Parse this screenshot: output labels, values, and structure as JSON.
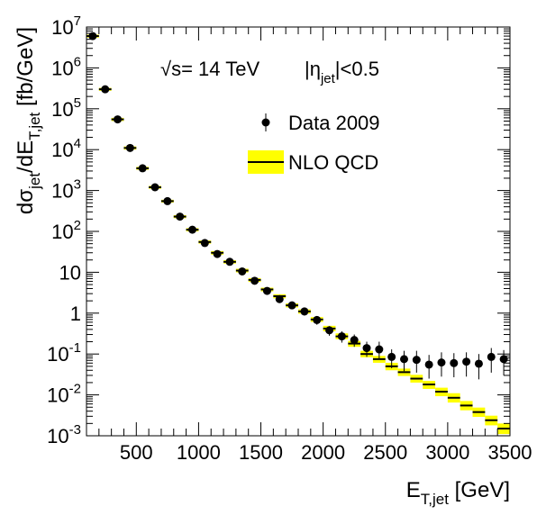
{
  "chart_data": {
    "type": "scatter",
    "title": "",
    "xlabel": "E_{T,jet}  [GeV]",
    "ylabel": "dσ_{jet}/dE_{T,jet} [fb/GeV]",
    "x_scale": "linear",
    "y_scale": "log",
    "xlim": [
      100,
      3500
    ],
    "ylim": [
      0.001,
      10000000
    ],
    "x_ticks": [
      500,
      1000,
      1500,
      2000,
      2500,
      3000,
      3500
    ],
    "x_tick_labels": [
      "500",
      "1000",
      "1500",
      "2000",
      "2500",
      "3000",
      "3500"
    ],
    "y_ticks": [
      0.001,
      0.01,
      0.1,
      1,
      10,
      100,
      1000,
      10000,
      100000,
      1000000,
      10000000
    ],
    "y_tick_labels": [
      "10^{-3}",
      "10^{-2}",
      "10^{-1}",
      "1",
      "10",
      "10^{2}",
      "10^{3}",
      "10^{4}",
      "10^{5}",
      "10^{6}",
      "10^{7}"
    ],
    "grid": false,
    "legend_position": "top-right",
    "annotations": {
      "energy": "√s= 14 TeV",
      "eta_cut": "|η_{jet}|<0.5"
    },
    "series": [
      {
        "name": "Data 2009",
        "type": "points",
        "x": [
          150,
          250,
          350,
          450,
          550,
          650,
          750,
          850,
          950,
          1050,
          1150,
          1250,
          1350,
          1450,
          1550,
          1650,
          1750,
          1850,
          1950,
          2050,
          2150,
          2250,
          2350,
          2450,
          2550,
          2650,
          2750,
          2850,
          2950,
          3050,
          3150,
          3250,
          3350,
          3450
        ],
        "y": [
          6000000,
          300000,
          55000,
          11000,
          3500,
          1200,
          550,
          230,
          110,
          52,
          28,
          18,
          10.5,
          6.2,
          3.5,
          2.2,
          1.55,
          1.1,
          0.68,
          0.38,
          0.27,
          0.22,
          0.14,
          0.13,
          0.085,
          0.075,
          0.072,
          0.055,
          0.062,
          0.06,
          0.065,
          0.058,
          0.085,
          0.075
        ],
        "y_low": [
          5400000,
          270000,
          50000,
          10000,
          3200,
          1100,
          505,
          212,
          101,
          47,
          25,
          16,
          9.2,
          5.3,
          2.9,
          1.8,
          1.25,
          0.87,
          0.52,
          0.28,
          0.19,
          0.15,
          0.085,
          0.075,
          0.045,
          0.038,
          0.035,
          0.025,
          0.028,
          0.027,
          0.028,
          0.024,
          0.035,
          0.03
        ],
        "y_high": [
          6600000,
          330000,
          60000,
          12000,
          3800,
          1300,
          600,
          250,
          120,
          57,
          31,
          20,
          11.8,
          7.1,
          4.1,
          2.6,
          1.85,
          1.33,
          0.84,
          0.48,
          0.36,
          0.3,
          0.2,
          0.2,
          0.13,
          0.12,
          0.12,
          0.095,
          0.11,
          0.105,
          0.11,
          0.1,
          0.14,
          0.125
        ]
      },
      {
        "name": "NLO QCD",
        "type": "step-band",
        "bin_edges": [
          100,
          200,
          300,
          400,
          500,
          600,
          700,
          800,
          900,
          1000,
          1100,
          1200,
          1300,
          1400,
          1500,
          1600,
          1700,
          1800,
          1900,
          2000,
          2100,
          2200,
          2300,
          2400,
          2500,
          2600,
          2700,
          2800,
          2900,
          3000,
          3100,
          3200,
          3300,
          3400,
          3500
        ],
        "y": [
          6000000,
          300000,
          55000,
          11000,
          3500,
          1200,
          550,
          230,
          110,
          55,
          30,
          18,
          11,
          6.5,
          3.8,
          2.6,
          1.55,
          1.1,
          0.7,
          0.42,
          0.27,
          0.18,
          0.1,
          0.075,
          0.05,
          0.036,
          0.025,
          0.018,
          0.012,
          0.0085,
          0.0055,
          0.0038,
          0.0024,
          0.0015
        ],
        "band_low": [
          5500000,
          275000,
          50000,
          10000,
          3200,
          1100,
          505,
          210,
          100,
          50,
          27,
          16.3,
          9.9,
          5.8,
          3.4,
          2.3,
          1.38,
          0.97,
          0.61,
          0.36,
          0.23,
          0.15,
          0.083,
          0.061,
          0.04,
          0.029,
          0.02,
          0.014,
          0.0093,
          0.0065,
          0.0042,
          0.0029,
          0.0018,
          0.0011
        ],
        "band_high": [
          6500000,
          325000,
          60000,
          12000,
          3800,
          1300,
          595,
          250,
          120,
          60,
          33,
          19.8,
          12.2,
          7.2,
          4.2,
          2.9,
          1.73,
          1.24,
          0.8,
          0.49,
          0.32,
          0.21,
          0.12,
          0.09,
          0.061,
          0.044,
          0.031,
          0.022,
          0.015,
          0.011,
          0.0071,
          0.0049,
          0.0031,
          0.002
        ]
      }
    ],
    "colors": {
      "band": "#ffff00",
      "line": "#000000",
      "marker": "#000000"
    }
  }
}
